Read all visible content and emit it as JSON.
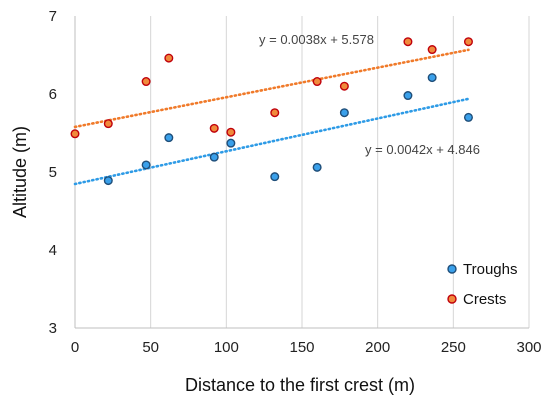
{
  "chart_data": {
    "type": "scatter",
    "title": "",
    "xlabel": "Distance to the first crest (m)",
    "ylabel": "Altitude (m)",
    "xlim": [
      0,
      300
    ],
    "ylim": [
      3,
      7
    ],
    "xticks": [
      "0",
      "50",
      "100",
      "150",
      "200",
      "250",
      "300"
    ],
    "yticks": [
      "3",
      "4",
      "5",
      "6",
      "7"
    ],
    "grid": "vertical",
    "legend_position": "bottom-right",
    "series": [
      {
        "name": "Troughs",
        "color": "#2e9be6",
        "marker_fill": "#3aa0ea",
        "marker_edge": "#1f4e79",
        "x": [
          22,
          47,
          62,
          92,
          103,
          132,
          160,
          178,
          220,
          236,
          260
        ],
        "y": [
          4.89,
          5.09,
          5.44,
          5.19,
          5.37,
          4.94,
          5.06,
          5.76,
          5.98,
          6.21,
          5.7
        ],
        "trend": {
          "slope": 0.0042,
          "intercept": 4.846,
          "x_range": [
            0,
            260
          ],
          "equation": "y = 0.0042x + 4.846"
        }
      },
      {
        "name": "Crests",
        "color": "#f07a2a",
        "marker_fill": "#f08a3c",
        "marker_edge": "#c0000b",
        "x": [
          0,
          22,
          47,
          62,
          92,
          103,
          132,
          160,
          178,
          220,
          236,
          260
        ],
        "y": [
          5.49,
          5.62,
          6.16,
          6.46,
          5.56,
          5.51,
          5.76,
          6.16,
          6.1,
          6.67,
          6.57,
          6.67
        ],
        "trend": {
          "slope": 0.0038,
          "intercept": 5.578,
          "x_range": [
            0,
            260
          ],
          "equation": "y = 0.0038x + 5.578"
        }
      }
    ]
  }
}
